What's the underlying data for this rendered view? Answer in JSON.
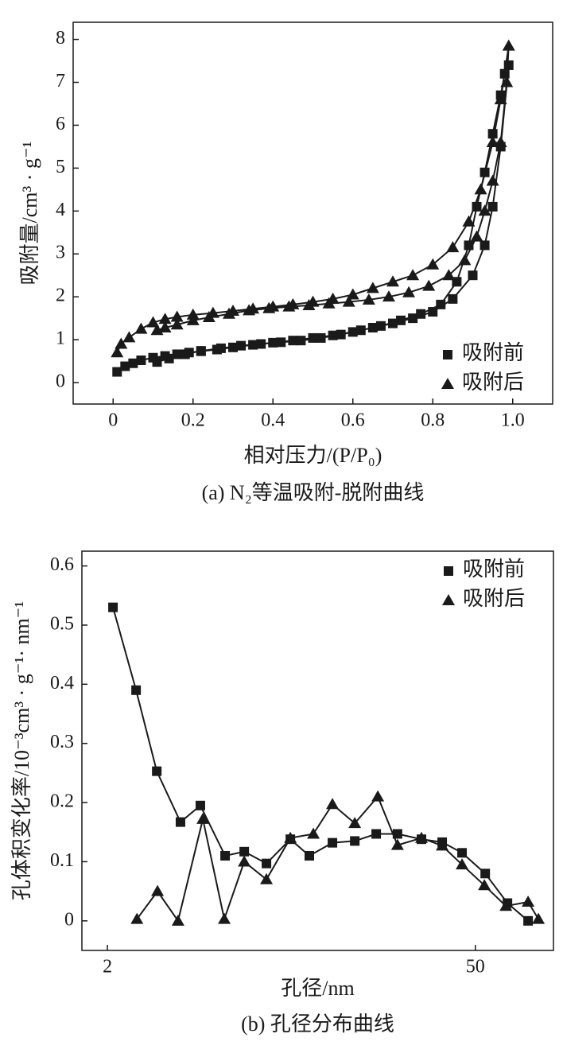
{
  "chart_data": [
    {
      "type": "line",
      "caption": "(a) N₂等温吸附-脱附曲线",
      "xlabel": "相对压力/(P/P₀)",
      "ylabel": "吸附量/cm³ · g⁻¹",
      "xlim": [
        -0.1,
        1.1
      ],
      "ylim": [
        -0.5,
        8.4
      ],
      "xticks": [
        0,
        0.2,
        0.4,
        0.6,
        0.8,
        {
          "value": 1,
          "label": "1.0"
        }
      ],
      "yticks": [
        0,
        1,
        2,
        3,
        4,
        5,
        6,
        7,
        8
      ],
      "legend": "lower right",
      "series": [
        {
          "name": "吸附前",
          "color": "#1a1a1a",
          "marker": "square",
          "x": [
            0.01,
            0.03,
            0.05,
            0.07,
            0.1,
            0.13,
            0.16,
            0.19,
            0.22,
            0.26,
            0.3,
            0.35,
            0.4,
            0.45,
            0.5,
            0.55,
            0.6,
            0.65,
            0.7,
            0.75,
            0.8,
            0.85,
            0.9,
            0.93,
            0.95,
            0.97,
            0.99,
            0.98,
            0.97,
            0.95,
            0.93,
            0.91,
            0.89,
            0.86,
            0.82,
            0.77,
            0.72,
            0.67,
            0.62,
            0.57,
            0.52,
            0.47,
            0.42,
            0.37,
            0.32,
            0.27,
            0.22,
            0.18,
            0.14,
            0.11
          ],
          "values": [
            0.25,
            0.38,
            0.45,
            0.52,
            0.58,
            0.62,
            0.66,
            0.7,
            0.73,
            0.77,
            0.82,
            0.88,
            0.93,
            0.98,
            1.04,
            1.1,
            1.18,
            1.28,
            1.38,
            1.5,
            1.65,
            1.95,
            2.5,
            3.2,
            4.1,
            5.5,
            7.4,
            7.2,
            6.7,
            5.8,
            4.9,
            4.1,
            3.2,
            2.35,
            1.82,
            1.6,
            1.45,
            1.32,
            1.22,
            1.12,
            1.04,
            0.98,
            0.94,
            0.9,
            0.86,
            0.8,
            0.74,
            0.66,
            0.56,
            0.48
          ]
        },
        {
          "name": "吸附后",
          "color": "#1a1a1a",
          "marker": "triangle",
          "x": [
            0.01,
            0.02,
            0.04,
            0.07,
            0.1,
            0.13,
            0.16,
            0.2,
            0.25,
            0.3,
            0.35,
            0.4,
            0.45,
            0.5,
            0.55,
            0.6,
            0.65,
            0.7,
            0.75,
            0.8,
            0.85,
            0.89,
            0.92,
            0.95,
            0.97,
            0.99,
            0.985,
            0.97,
            0.95,
            0.93,
            0.91,
            0.88,
            0.84,
            0.79,
            0.74,
            0.69,
            0.64,
            0.59,
            0.54,
            0.49,
            0.44,
            0.39,
            0.34,
            0.29,
            0.24,
            0.2,
            0.16,
            0.13,
            0.11
          ],
          "values": [
            0.7,
            0.9,
            1.05,
            1.25,
            1.4,
            1.48,
            1.53,
            1.58,
            1.62,
            1.67,
            1.72,
            1.77,
            1.82,
            1.88,
            1.95,
            2.05,
            2.2,
            2.35,
            2.5,
            2.75,
            3.15,
            3.75,
            4.5,
            5.6,
            6.6,
            7.85,
            7.0,
            5.6,
            4.7,
            4.0,
            3.4,
            2.85,
            2.5,
            2.25,
            2.1,
            2.0,
            1.93,
            1.88,
            1.84,
            1.8,
            1.77,
            1.73,
            1.68,
            1.6,
            1.52,
            1.45,
            1.35,
            1.28,
            1.22
          ]
        }
      ]
    },
    {
      "type": "line",
      "caption": "(b) 孔径分布曲线",
      "xlabel": "孔径/nm",
      "ylabel": "孔体积变化率/10⁻³cm³ · g⁻¹· nm⁻¹",
      "xscale": "log",
      "xlim": [
        1.6,
        99
      ],
      "ylim": [
        -0.05,
        0.625
      ],
      "xticks": [
        2,
        50
      ],
      "yticks": [
        0,
        0.1,
        0.2,
        0.3,
        0.4,
        0.5,
        0.6
      ],
      "legend": "upper right",
      "series": [
        {
          "name": "吸附前",
          "color": "#1a1a1a",
          "marker": "square",
          "x": [
            2.1,
            2.57,
            3.08,
            3.79,
            4.51,
            5.6,
            6.62,
            8.04,
            9.91,
            11.7,
            14.32,
            17.41,
            21.0,
            25.3,
            31.2,
            37.4,
            44.5,
            54.5,
            66.2,
            79.3
          ],
          "values": [
            0.53,
            0.39,
            0.253,
            0.167,
            0.195,
            0.11,
            0.117,
            0.097,
            0.138,
            0.11,
            0.132,
            0.135,
            0.147,
            0.147,
            0.138,
            0.133,
            0.115,
            0.08,
            0.03,
            0.0
          ]
        },
        {
          "name": "吸附后",
          "color": "#1a1a1a",
          "marker": "triangle",
          "x": [
            2.59,
            3.1,
            3.71,
            4.61,
            5.56,
            6.62,
            8.04,
            9.91,
            12.12,
            14.32,
            17.41,
            21.3,
            25.3,
            31.2,
            37.4,
            44.5,
            54.1,
            65.3,
            79.3,
            86.8
          ],
          "values": [
            0.003,
            0.05,
            0.0,
            0.172,
            0.003,
            0.1,
            0.07,
            0.14,
            0.147,
            0.197,
            0.165,
            0.21,
            0.128,
            0.14,
            0.127,
            0.095,
            0.06,
            0.025,
            0.032,
            0.003
          ]
        }
      ]
    }
  ]
}
